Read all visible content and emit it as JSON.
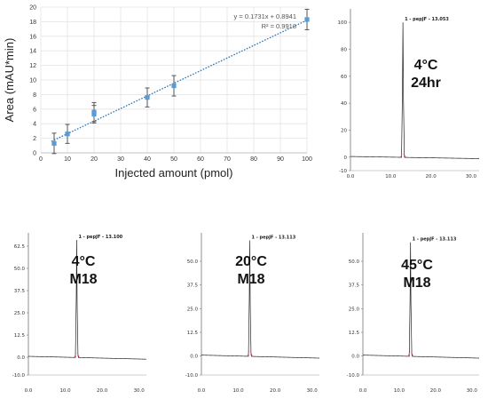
{
  "chart_data": [
    {
      "type": "scatter",
      "title": "",
      "xlabel": "Injected amount (pmol)",
      "ylabel": "Area (mAU*min)",
      "xlim": [
        0,
        100
      ],
      "ylim": [
        0,
        20
      ],
      "xticks": [
        "0",
        "10",
        "20",
        "30",
        "40",
        "50",
        "60",
        "70",
        "80",
        "90",
        "100"
      ],
      "yticks": [
        "0",
        "2",
        "4",
        "6",
        "8",
        "10",
        "12",
        "14",
        "16",
        "18",
        "20"
      ],
      "grid": true,
      "points": [
        {
          "x": 5,
          "y": 1.3,
          "err": 1.4
        },
        {
          "x": 10,
          "y": 2.6,
          "err": 1.3
        },
        {
          "x": 20,
          "y": 5.3,
          "err": 1.2
        },
        {
          "x": 20,
          "y": 5.6,
          "err": 1.3
        },
        {
          "x": 40,
          "y": 7.6,
          "err": 1.3
        },
        {
          "x": 50,
          "y": 9.2,
          "err": 1.4
        },
        {
          "x": 100,
          "y": 18.3,
          "err": 1.4
        }
      ],
      "trendline": {
        "slope": 0.1731,
        "intercept": 0.8941
      },
      "equation": "y = 0.1731x + 0.8941",
      "r2": "R² = 0.9918",
      "colors": {
        "points": "#5b9bd5",
        "trend": "#2e75b6",
        "errorbars": "#555555"
      }
    },
    {
      "type": "line",
      "peak_label": "1 - pepJF - 13.053",
      "condition": [
        "4°C",
        "24hr"
      ],
      "xlim": [
        0,
        32
      ],
      "ylim": [
        -10,
        110
      ],
      "xticks": [
        "0.0",
        "10.0",
        "20.0",
        "30.0"
      ],
      "yticks": [
        "100",
        "80",
        "60",
        "40",
        "20",
        "0",
        "-10"
      ],
      "peak_rt": 13.05,
      "peak_height": 100
    },
    {
      "type": "line",
      "peak_label": "1 - pepJF - 13.100",
      "condition": [
        "4°C",
        "M18"
      ],
      "xlim": [
        0,
        32
      ],
      "ylim": [
        -10,
        70
      ],
      "xticks": [
        "0.0",
        "10.0",
        "20.0",
        "30.0"
      ],
      "yticks": [
        "62.5",
        "50.0",
        "37.5",
        "25.0",
        "12.5",
        "0.0",
        "-10.0"
      ],
      "peak_rt": 13.1,
      "peak_height": 66
    },
    {
      "type": "line",
      "peak_label": "1 - pepJF - 13.113",
      "condition": [
        "20°C",
        "M18"
      ],
      "xlim": [
        0,
        32
      ],
      "ylim": [
        -10,
        65
      ],
      "xticks": [
        "0.0",
        "10.0",
        "20.0",
        "30.0"
      ],
      "yticks": [
        "50.0",
        "37.5",
        "25.0",
        "12.5",
        "0.0",
        "-10.0"
      ],
      "peak_rt": 13.11,
      "peak_height": 61
    },
    {
      "type": "line",
      "peak_label": "1 - pepJF - 13.113",
      "condition": [
        "45°C",
        "M18"
      ],
      "xlim": [
        0,
        32
      ],
      "ylim": [
        -10,
        65
      ],
      "xticks": [
        "0.0",
        "10.0",
        "20.0",
        "30.0"
      ],
      "yticks": [
        "50.0",
        "37.5",
        "25.0",
        "12.5",
        "0.0",
        "-10.0"
      ],
      "peak_rt": 13.11,
      "peak_height": 60
    }
  ]
}
